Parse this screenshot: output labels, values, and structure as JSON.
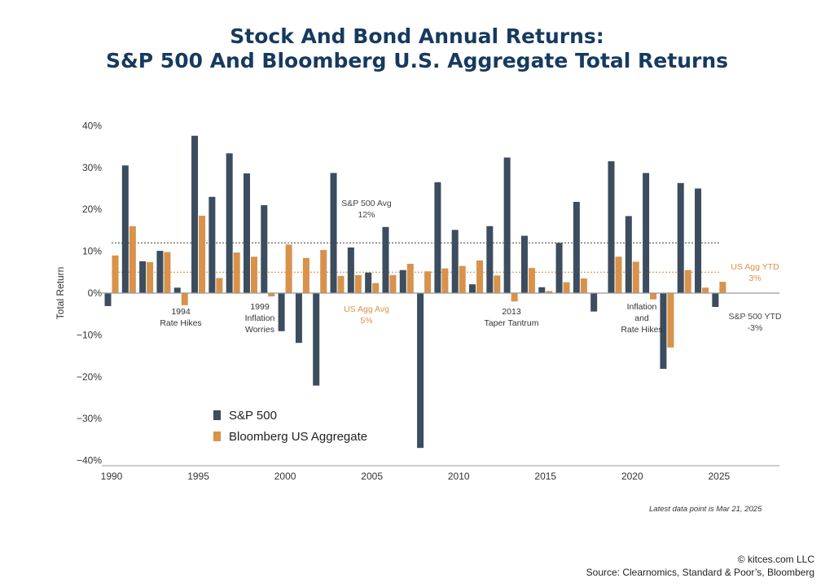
{
  "title_line1": "Stock And Bond Annual Returns:",
  "title_line2": "S&P 500 And Bloomberg U.S. Aggregate Total Returns",
  "latest_note": "Latest data point is Mar 21, 2025",
  "copyright": "© kitces.com LLC",
  "source": "Source: Clearnomics, Standard & Poor’s, Bloomberg",
  "chart_data": {
    "type": "bar",
    "ylabel": "Total Return",
    "ylim": [
      -40,
      40
    ],
    "yticks": [
      "40%",
      "30%",
      "20%",
      "10%",
      "0%",
      "−10%",
      "−20%",
      "−30%",
      "−40%"
    ],
    "ytick_values": [
      40,
      30,
      20,
      10,
      0,
      -10,
      -20,
      -30,
      -40
    ],
    "xticks": [
      "1990",
      "1995",
      "2000",
      "2005",
      "2010",
      "2015",
      "2020",
      "2025"
    ],
    "xtick_values": [
      1990,
      1995,
      2000,
      2005,
      2010,
      2015,
      2020,
      2025
    ],
    "categories": [
      1990,
      1991,
      1992,
      1993,
      1994,
      1995,
      1996,
      1997,
      1998,
      1999,
      2000,
      2001,
      2002,
      2003,
      2004,
      2005,
      2006,
      2007,
      2008,
      2009,
      2010,
      2011,
      2012,
      2013,
      2014,
      2015,
      2016,
      2017,
      2018,
      2019,
      2020,
      2021,
      2022,
      2023,
      2024,
      2025
    ],
    "series": [
      {
        "name": "S&P 500",
        "color": "#3b4d5e",
        "values": [
          -3.1,
          30.5,
          7.6,
          10.1,
          1.3,
          37.6,
          23.0,
          33.4,
          28.6,
          21.0,
          -9.1,
          -11.9,
          -22.1,
          28.7,
          10.9,
          4.9,
          15.8,
          5.5,
          -37.0,
          26.5,
          15.1,
          2.1,
          16.0,
          32.4,
          13.7,
          1.4,
          12.0,
          21.8,
          -4.4,
          31.5,
          18.4,
          28.7,
          -18.1,
          26.3,
          25.0,
          -3.3
        ]
      },
      {
        "name": "Bloomberg US Aggregate",
        "color": "#d8924b",
        "values": [
          9.0,
          16.0,
          7.4,
          9.8,
          -2.9,
          18.5,
          3.6,
          9.7,
          8.7,
          -0.8,
          11.6,
          8.4,
          10.3,
          4.1,
          4.3,
          2.4,
          4.3,
          7.0,
          5.2,
          5.9,
          6.5,
          7.8,
          4.2,
          -2.0,
          6.0,
          0.5,
          2.6,
          3.5,
          0.0,
          8.7,
          7.5,
          -1.5,
          -13.0,
          5.5,
          1.3,
          2.7
        ]
      }
    ],
    "reference_lines": [
      {
        "label": "S&P 500 Avg",
        "value_label": "12%",
        "value": 12,
        "color": "#555555"
      },
      {
        "label": "US Agg Avg",
        "value_label": "5%",
        "value": 5,
        "color": "#d8924b"
      }
    ],
    "annotations": [
      {
        "id": "a1994",
        "lines": [
          "1994",
          "Rate Hikes"
        ]
      },
      {
        "id": "a1999",
        "lines": [
          "1999",
          "Inflation",
          "Worries"
        ]
      },
      {
        "id": "a2013",
        "lines": [
          "2013",
          "Taper Tantrum"
        ]
      },
      {
        "id": "a2022",
        "lines": [
          "Inflation",
          "and",
          "Rate Hikes"
        ]
      },
      {
        "id": "aggytd",
        "lines": [
          "US Agg YTD",
          "3%"
        ]
      },
      {
        "id": "spytd",
        "lines": [
          "S&P 500 YTD",
          "-3%"
        ]
      }
    ],
    "legend": {
      "placement": "bottom-left",
      "entries": [
        "S&P 500",
        "Bloomberg US Aggregate"
      ]
    },
    "grid": false
  }
}
